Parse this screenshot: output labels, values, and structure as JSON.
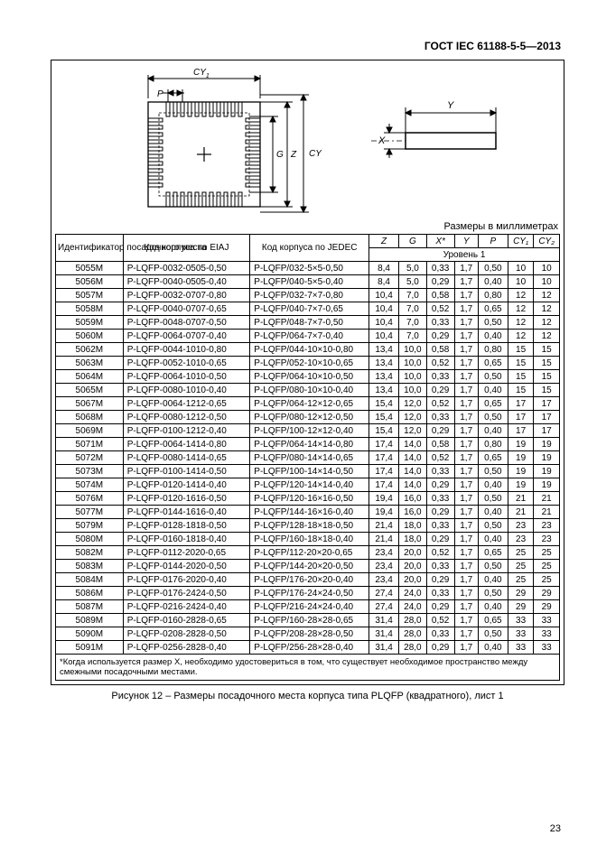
{
  "gost_title": "ГОСТ IEC 61188-5-5—2013",
  "mm_caption": "Размеры в миллиметрах",
  "figure_caption": "Рисунок 12  –  Размеры посадочного места корпуса типа PLQFP (квадратного), лист 1",
  "page_number": "23",
  "footnote": "*Когда используется размер X, необходимо удостовериться в том, что существует необходимое пространство между смежными посадочными местами.",
  "headers": {
    "id": "Идентификатор посадочного места",
    "eiaj": "Код корпуса по EIAJ",
    "jedec": "Код корпуса по JEDEC",
    "z": "Z",
    "g": "G",
    "x": "X*",
    "y": "Y",
    "p": "P",
    "cy1": "CY₁",
    "cy2": "CY₂",
    "level": "Уровень 1"
  },
  "diagram_labels": {
    "cy1": "CY",
    "cy1_sub": "1",
    "p": "P",
    "g": "G",
    "z": "Z",
    "cy2": "CY",
    "cy2_sub": "2",
    "x": "X",
    "y": "Y"
  },
  "rows": [
    {
      "id": "5055М",
      "eiaj": "P-LQFP-0032-0505-0,50",
      "jedec": "P-LQFP/032-5×5-0,50",
      "z": "8,4",
      "g": "5,0",
      "x": "0,33",
      "y": "1,7",
      "p": "0,50",
      "cy1": "10",
      "cy2": "10"
    },
    {
      "id": "5056М",
      "eiaj": "P-LQFP-0040-0505-0,40",
      "jedec": "P-LQFP/040-5×5-0,40",
      "z": "8,4",
      "g": "5,0",
      "x": "0,29",
      "y": "1,7",
      "p": "0,40",
      "cy1": "10",
      "cy2": "10"
    },
    {
      "id": "5057М",
      "eiaj": "P-LQFP-0032-0707-0,80",
      "jedec": "P-LQFP/032-7×7-0,80",
      "z": "10,4",
      "g": "7,0",
      "x": "0,58",
      "y": "1,7",
      "p": "0,80",
      "cy1": "12",
      "cy2": "12"
    },
    {
      "id": "5058М",
      "eiaj": "P-LQFP-0040-0707-0,65",
      "jedec": "P-LQFP/040-7×7-0,65",
      "z": "10,4",
      "g": "7,0",
      "x": "0,52",
      "y": "1,7",
      "p": "0,65",
      "cy1": "12",
      "cy2": "12"
    },
    {
      "id": "5059М",
      "eiaj": "P-LQFP-0048-0707-0,50",
      "jedec": "P-LQFP/048-7×7-0,50",
      "z": "10,4",
      "g": "7,0",
      "x": "0,33",
      "y": "1,7",
      "p": "0,50",
      "cy1": "12",
      "cy2": "12"
    },
    {
      "id": "5060М",
      "eiaj": "P-LQFP-0064-0707-0,40",
      "jedec": "P-LQFP/064-7×7-0,40",
      "z": "10,4",
      "g": "7,0",
      "x": "0,29",
      "y": "1,7",
      "p": "0,40",
      "cy1": "12",
      "cy2": "12"
    },
    {
      "id": "5062М",
      "eiaj": "P-LQFP-0044-1010-0,80",
      "jedec": "P-LQFP/044-10×10-0,80",
      "z": "13,4",
      "g": "10,0",
      "x": "0,58",
      "y": "1,7",
      "p": "0,80",
      "cy1": "15",
      "cy2": "15"
    },
    {
      "id": "5063М",
      "eiaj": "P-LQFP-0052-1010-0,65",
      "jedec": "P-LQFP/052-10×10-0,65",
      "z": "13,4",
      "g": "10,0",
      "x": "0,52",
      "y": "1,7",
      "p": "0,65",
      "cy1": "15",
      "cy2": "15"
    },
    {
      "id": "5064М",
      "eiaj": "P-LQFP-0064-1010-0,50",
      "jedec": "P-LQFP/064-10×10-0,50",
      "z": "13,4",
      "g": "10,0",
      "x": "0,33",
      "y": "1,7",
      "p": "0,50",
      "cy1": "15",
      "cy2": "15"
    },
    {
      "id": "5065М",
      "eiaj": "P-LQFP-0080-1010-0,40",
      "jedec": "P-LQFP/080-10×10-0,40",
      "z": "13,4",
      "g": "10,0",
      "x": "0,29",
      "y": "1,7",
      "p": "0,40",
      "cy1": "15",
      "cy2": "15"
    },
    {
      "id": "5067М",
      "eiaj": "P-LQFP-0064-1212-0,65",
      "jedec": "P-LQFP/064-12×12-0,65",
      "z": "15,4",
      "g": "12,0",
      "x": "0,52",
      "y": "1,7",
      "p": "0,65",
      "cy1": "17",
      "cy2": "17"
    },
    {
      "id": "5068М",
      "eiaj": "P-LQFP-0080-1212-0,50",
      "jedec": "P-LQFP/080-12×12-0,50",
      "z": "15,4",
      "g": "12,0",
      "x": "0,33",
      "y": "1,7",
      "p": "0,50",
      "cy1": "17",
      "cy2": "17"
    },
    {
      "id": "5069М",
      "eiaj": "P-LQFP-0100-1212-0,40",
      "jedec": "P-LQFP/100-12×12-0,40",
      "z": "15,4",
      "g": "12,0",
      "x": "0,29",
      "y": "1,7",
      "p": "0,40",
      "cy1": "17",
      "cy2": "17"
    },
    {
      "id": "5071М",
      "eiaj": "P-LQFP-0064-1414-0,80",
      "jedec": "P-LQFP/064-14×14-0,80",
      "z": "17,4",
      "g": "14,0",
      "x": "0,58",
      "y": "1,7",
      "p": "0,80",
      "cy1": "19",
      "cy2": "19"
    },
    {
      "id": "5072М",
      "eiaj": "P-LQFP-0080-1414-0,65",
      "jedec": "P-LQFP/080-14×14-0,65",
      "z": "17,4",
      "g": "14,0",
      "x": "0,52",
      "y": "1,7",
      "p": "0,65",
      "cy1": "19",
      "cy2": "19"
    },
    {
      "id": "5073М",
      "eiaj": "P-LQFP-0100-1414-0,50",
      "jedec": "P-LQFP/100-14×14-0,50",
      "z": "17,4",
      "g": "14,0",
      "x": "0,33",
      "y": "1,7",
      "p": "0,50",
      "cy1": "19",
      "cy2": "19"
    },
    {
      "id": "5074М",
      "eiaj": "P-LQFP-0120-1414-0,40",
      "jedec": "P-LQFP/120-14×14-0,40",
      "z": "17,4",
      "g": "14,0",
      "x": "0,29",
      "y": "1,7",
      "p": "0,40",
      "cy1": "19",
      "cy2": "19"
    },
    {
      "id": "5076М",
      "eiaj": "P-LQFP-0120-1616-0,50",
      "jedec": "P-LQFP/120-16×16-0,50",
      "z": "19,4",
      "g": "16,0",
      "x": "0,33",
      "y": "1,7",
      "p": "0,50",
      "cy1": "21",
      "cy2": "21"
    },
    {
      "id": "5077М",
      "eiaj": "P-LQFP-0144-1616-0,40",
      "jedec": "P-LQFP/144-16×16-0,40",
      "z": "19,4",
      "g": "16,0",
      "x": "0,29",
      "y": "1,7",
      "p": "0,40",
      "cy1": "21",
      "cy2": "21"
    },
    {
      "id": "5079М",
      "eiaj": "P-LQFP-0128-1818-0,50",
      "jedec": "P-LQFP/128-18×18-0,50",
      "z": "21,4",
      "g": "18,0",
      "x": "0,33",
      "y": "1,7",
      "p": "0,50",
      "cy1": "23",
      "cy2": "23"
    },
    {
      "id": "5080М",
      "eiaj": "P-LQFP-0160-1818-0,40",
      "jedec": "P-LQFP/160-18×18-0,40",
      "z": "21,4",
      "g": "18,0",
      "x": "0,29",
      "y": "1,7",
      "p": "0,40",
      "cy1": "23",
      "cy2": "23"
    },
    {
      "id": "5082М",
      "eiaj": "P-LQFP-0112-2020-0,65",
      "jedec": "P-LQFP/112-20×20-0,65",
      "z": "23,4",
      "g": "20,0",
      "x": "0,52",
      "y": "1,7",
      "p": "0,65",
      "cy1": "25",
      "cy2": "25"
    },
    {
      "id": "5083М",
      "eiaj": "P-LQFP-0144-2020-0,50",
      "jedec": "P-LQFP/144-20×20-0,50",
      "z": "23,4",
      "g": "20,0",
      "x": "0,33",
      "y": "1,7",
      "p": "0,50",
      "cy1": "25",
      "cy2": "25"
    },
    {
      "id": "5084М",
      "eiaj": "P-LQFP-0176-2020-0,40",
      "jedec": "P-LQFP/176-20×20-0,40",
      "z": "23,4",
      "g": "20,0",
      "x": "0,29",
      "y": "1,7",
      "p": "0,40",
      "cy1": "25",
      "cy2": "25"
    },
    {
      "id": "5086М",
      "eiaj": "P-LQFP-0176-2424-0,50",
      "jedec": "P-LQFP/176-24×24-0,50",
      "z": "27,4",
      "g": "24,0",
      "x": "0,33",
      "y": "1,7",
      "p": "0,50",
      "cy1": "29",
      "cy2": "29"
    },
    {
      "id": "5087М",
      "eiaj": "P-LQFP-0216-2424-0,40",
      "jedec": "P-LQFP/216-24×24-0,40",
      "z": "27,4",
      "g": "24,0",
      "x": "0,29",
      "y": "1,7",
      "p": "0,40",
      "cy1": "29",
      "cy2": "29"
    },
    {
      "id": "5089М",
      "eiaj": "P-LQFP-0160-2828-0,65",
      "jedec": "P-LQFP/160-28×28-0,65",
      "z": "31,4",
      "g": "28,0",
      "x": "0,52",
      "y": "1,7",
      "p": "0,65",
      "cy1": "33",
      "cy2": "33"
    },
    {
      "id": "5090М",
      "eiaj": "P-LQFP-0208-2828-0,50",
      "jedec": "P-LQFP/208-28×28-0,50",
      "z": "31,4",
      "g": "28,0",
      "x": "0,33",
      "y": "1,7",
      "p": "0,50",
      "cy1": "33",
      "cy2": "33"
    },
    {
      "id": "5091М",
      "eiaj": "P-LQFP-0256-2828-0,40",
      "jedec": "P-LQFP/256-28×28-0,40",
      "z": "31,4",
      "g": "28,0",
      "x": "0,29",
      "y": "1,7",
      "p": "0,40",
      "cy1": "33",
      "cy2": "33"
    }
  ]
}
